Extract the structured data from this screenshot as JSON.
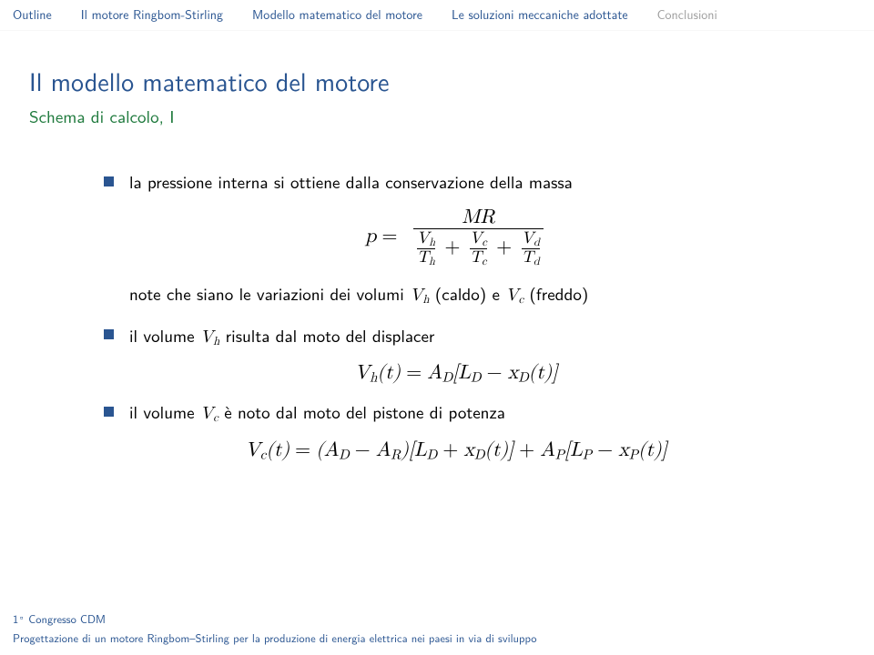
{
  "colors": {
    "structure": "#2a5591",
    "example": "#1f7a3d",
    "muted": "#9e9e9e"
  },
  "nav": {
    "items": [
      {
        "label": "Outline"
      },
      {
        "label": "Il motore Ringbom-Stirling"
      },
      {
        "label": "Modello matematico del motore"
      },
      {
        "label": "Le soluzioni meccaniche adottate"
      },
      {
        "label": "Conclusioni",
        "current": true
      }
    ]
  },
  "title": "Il modello matematico del motore",
  "subtitle": "Schema di calcolo, I",
  "bullets": {
    "b1_text": "la pressione interna si ottiene dalla conservazione della massa",
    "b1_note_pre": "note che siano le variazioni dei volumi ",
    "b1_note_mid": " (caldo) e ",
    "b1_note_post": " (freddo)",
    "b2_pre": "il volume ",
    "b2_post": " risulta dal moto del displacer",
    "b3_pre": "il volume ",
    "b3_post": " è noto dal moto del pistone di potenza"
  },
  "math": {
    "Vh": "V",
    "Vh_sub": "h",
    "Vc": "V",
    "Vc_sub": "c",
    "Vd": "V",
    "Vd_sub": "d",
    "Th": "T",
    "Th_sub": "h",
    "Tc": "T",
    "Tc_sub": "c",
    "Td": "T",
    "Td_sub": "d",
    "MR": "MR",
    "eq2": "V_h(t) = A_D[L_D − x_D(t)]",
    "eq3": "V_c(t) = (A_D − A_R)[L_D + x_D(t)] + A_P[L_P − x_P(t)]"
  },
  "footer": {
    "line1_pre": "1",
    "line1_post": " Congresso CDM",
    "line2": "Progettazione di un motore Ringbom–Stirling per la produzione di energia elettrica nei paesi in via di sviluppo"
  }
}
